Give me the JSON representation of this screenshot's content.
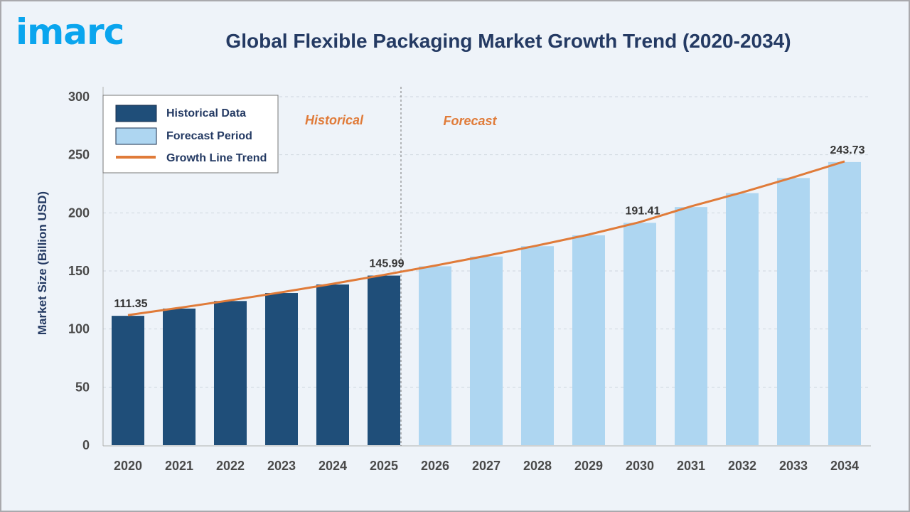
{
  "logo_text": "imarc",
  "chart_data": {
    "type": "bar",
    "title": "Global Flexible Packaging Market Growth Trend (2020-2034)",
    "ylabel": "Market Size (Billion USD)",
    "xlabel": "",
    "ylim": [
      0,
      300
    ],
    "yticks": [
      0,
      50,
      100,
      150,
      200,
      250,
      300
    ],
    "grid": true,
    "legend_position": "top-left",
    "categories": [
      "2020",
      "2021",
      "2022",
      "2023",
      "2024",
      "2025",
      "2026",
      "2027",
      "2028",
      "2029",
      "2030",
      "2031",
      "2032",
      "2033",
      "2034"
    ],
    "values": [
      111.35,
      117.6,
      124.1,
      131.0,
      138.3,
      145.99,
      154.0,
      162.4,
      171.3,
      180.7,
      191.41,
      205.0,
      217.0,
      230.0,
      243.73
    ],
    "data_labels": {
      "0": "111.35",
      "5": "145.99",
      "10": "191.41",
      "14": "243.73"
    },
    "historical_count": 6,
    "legend": [
      "Historical Data",
      "Forecast Period",
      "Growth Line Trend"
    ],
    "period_labels": [
      "Historical",
      "Forecast"
    ],
    "colors": {
      "historical": "#1f4e79",
      "forecast": "#aed6f1",
      "trend": "#e07b39"
    }
  }
}
